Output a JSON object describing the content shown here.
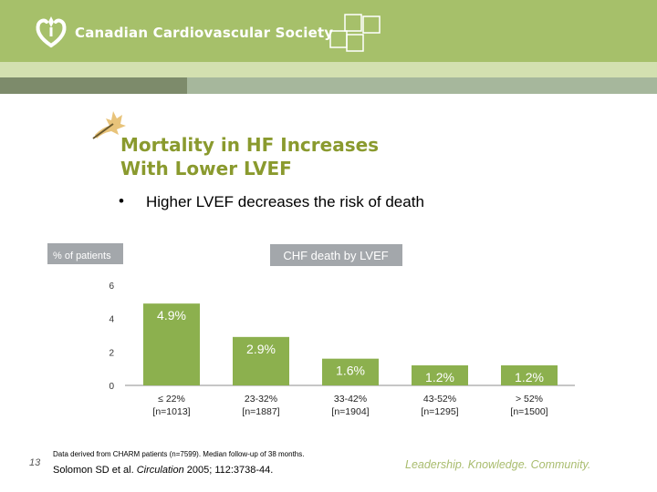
{
  "header": {
    "org_name": "Canadian Cardiovascular Society",
    "colors": {
      "header_bg": "#a6c06a",
      "stripe_light": "#d3e0b0",
      "stripe_dark": "#7d8b6b",
      "stripe_accent": "#a6b79c"
    }
  },
  "slide": {
    "title": "Mortality in HF Increases\nWith Lower LVEF",
    "bullet": "Higher LVEF decreases the risk of death",
    "slide_number": "13",
    "footnote": "Data derived from CHARM patients (n=7599). Median follow-up of 38 months.",
    "citation_pre": "Solomon SD et al. ",
    "citation_journal": "Circulation",
    "citation_post": " 2005; 112:3738-44.",
    "tagline": "Leadership. Knowledge. Community."
  },
  "chart_data": {
    "type": "bar",
    "title": "CHF death by LVEF",
    "ylabel": "% of patients",
    "ylim": [
      0,
      6
    ],
    "yticks": [
      0,
      2,
      4,
      6
    ],
    "categories": [
      "≤ 22%",
      "23-32%",
      "33-42%",
      "43-52%",
      "> 52%"
    ],
    "sublabels": [
      "[n=1013]",
      "[n=1887]",
      "[n=1904]",
      "[n=1295]",
      "[n=1500]"
    ],
    "values": [
      4.9,
      2.9,
      1.6,
      1.2,
      1.2
    ],
    "value_labels": [
      "4.9%",
      "2.9%",
      "1.6%",
      "1.2%",
      "1.2%"
    ],
    "colors": {
      "bar": "#8cb04e",
      "label_box": "#a3a7ab"
    }
  }
}
